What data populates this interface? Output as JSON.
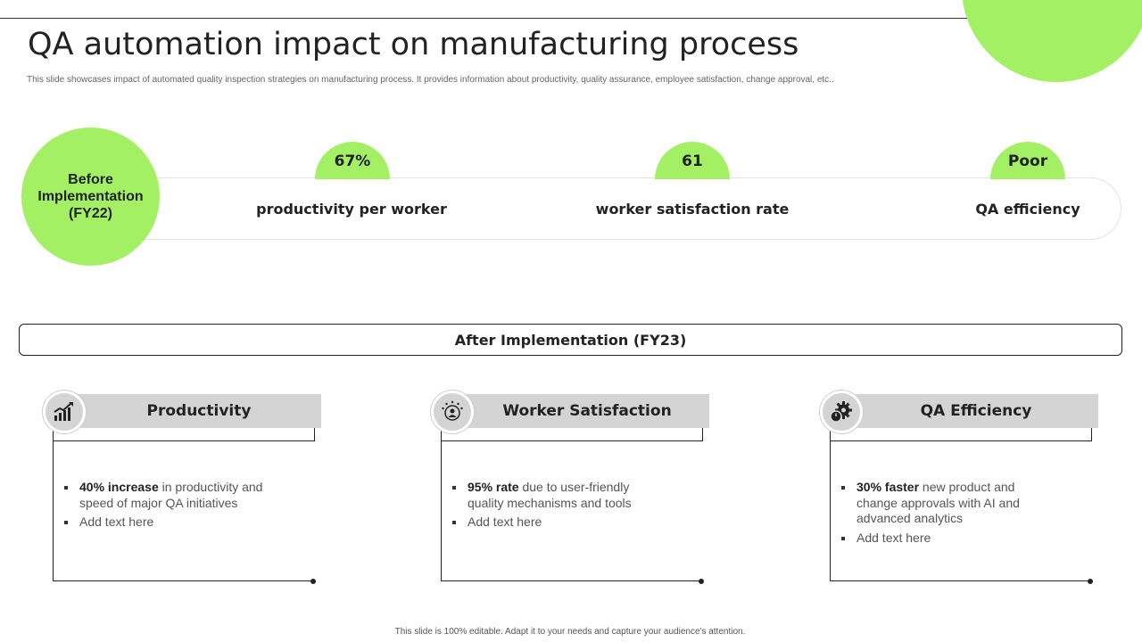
{
  "title": "QA automation impact on manufacturing process",
  "subtitle": "This slide showcases impact of automated quality inspection strategies on manufacturing process. It provides information about productivity, quality assurance, employee satisfaction, change approval, etc..",
  "before": {
    "label": "Before Implementation (FY22)",
    "metrics": [
      {
        "value": "67%",
        "label": "productivity per worker"
      },
      {
        "value": "61",
        "label": "worker satisfaction rate"
      },
      {
        "value": "Poor",
        "label": "QA efficiency"
      }
    ]
  },
  "after": {
    "label": "After Implementation (FY23)",
    "cards": [
      {
        "title": "Productivity",
        "icon": "growth-chart-icon",
        "bullet1_bold": "40% increase",
        "bullet1_rest": " in productivity and speed of major QA initiatives",
        "bullet2": "Add text here"
      },
      {
        "title": "Worker Satisfaction",
        "icon": "person-stars-icon",
        "bullet1_bold": "95% rate",
        "bullet1_rest": " due to user-friendly quality mechanisms and tools",
        "bullet2": "Add text here"
      },
      {
        "title": "QA Efficiency",
        "icon": "gear-stopwatch-icon",
        "bullet1_bold": "30% faster",
        "bullet1_rest": " new product and change approvals with AI and advanced analytics",
        "bullet2": "Add text here"
      }
    ]
  },
  "footer": "This slide is 100% editable.  Adapt it to your needs and capture your audience's attention.",
  "colors": {
    "accent": "#a3f065",
    "header_gray": "#d4d4d4",
    "text": "#222222"
  }
}
